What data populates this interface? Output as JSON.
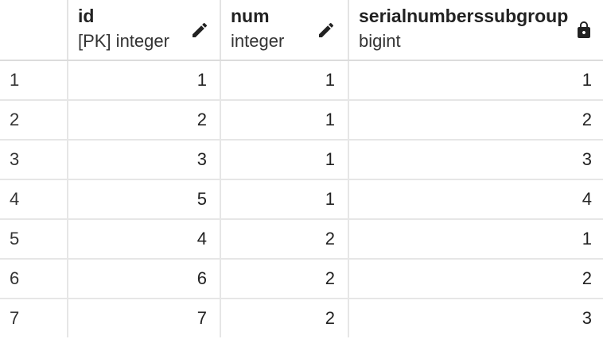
{
  "columns": [
    {
      "name": "id",
      "type": "[PK] integer",
      "icon": "pencil-icon"
    },
    {
      "name": "num",
      "type": "integer",
      "icon": "pencil-icon"
    },
    {
      "name": "serialnumberssubgroup",
      "type": "bigint",
      "icon": "lock-icon"
    }
  ],
  "rows": [
    {
      "row_number": "1",
      "id": "1",
      "num": "1",
      "serialnumberssubgroup": "1"
    },
    {
      "row_number": "2",
      "id": "2",
      "num": "1",
      "serialnumberssubgroup": "2"
    },
    {
      "row_number": "3",
      "id": "3",
      "num": "1",
      "serialnumberssubgroup": "3"
    },
    {
      "row_number": "4",
      "id": "5",
      "num": "1",
      "serialnumberssubgroup": "4"
    },
    {
      "row_number": "5",
      "id": "4",
      "num": "2",
      "serialnumberssubgroup": "1"
    },
    {
      "row_number": "6",
      "id": "6",
      "num": "2",
      "serialnumberssubgroup": "2"
    },
    {
      "row_number": "7",
      "id": "7",
      "num": "2",
      "serialnumberssubgroup": "3"
    }
  ]
}
